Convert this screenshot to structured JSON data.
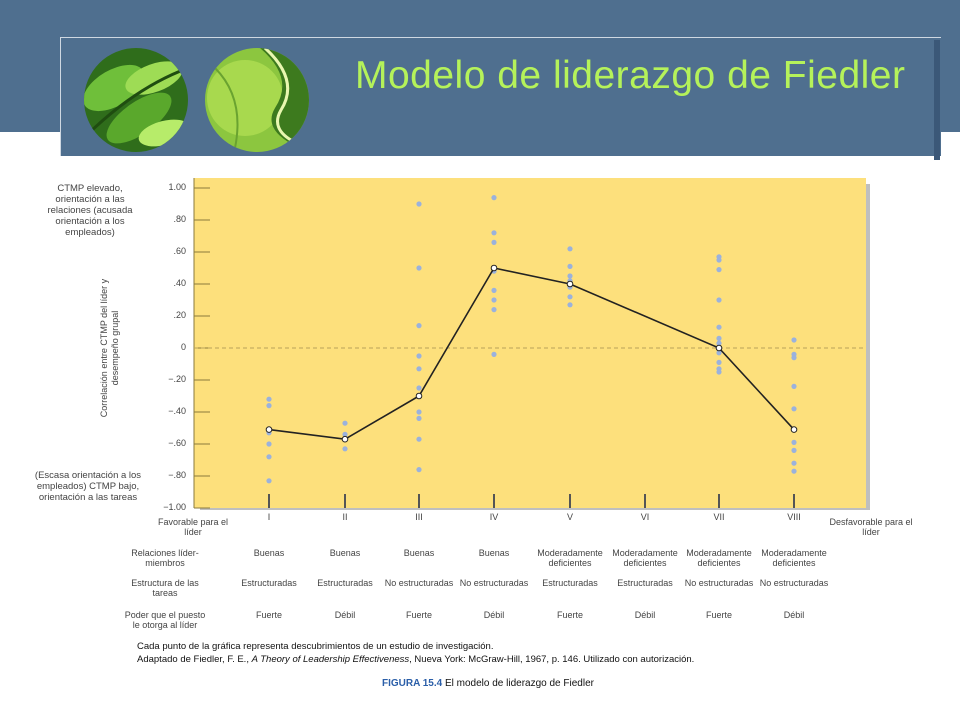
{
  "slide": {
    "title": "Modelo de liderazgo de Fiedler"
  },
  "colors": {
    "banner": "#4f6f8f",
    "title": "#b5f25a",
    "plot_background": "#fde07c",
    "points": "#9bb2dc",
    "line": "#222222"
  },
  "figure": {
    "y_top_note": "CTMP elevado, orientación a las relaciones (acusada orientación a los empleados)",
    "y_axis_label": "Correlación entre CTMP del líder y desempeño grupal",
    "y_bottom_note": "(Escasa orientación a los empleados) CTMP bajo, orientación a las tareas",
    "left_end": "Favorable para el líder",
    "right_end": "Desfavorable para el líder",
    "row_labels": {
      "relations": "Relaciones líder-miembros",
      "structure": "Estructura de las tareas",
      "power": "Poder que el puesto le otorga al líder"
    },
    "note_line1": "Cada punto de la gráfica representa descubrimientos de un estudio de investigación.",
    "note_line2_pre": "Adaptado de Fiedler, F. E., ",
    "note_line2_book": "A Theory of Leadership Effectiveness",
    "note_line2_post": ", Nueva York: McGraw-Hill, 1967, p. 146. Utilizado con autorización.",
    "caption_label": "FIGURA 15.4",
    "caption_text": " El modelo de liderazgo de Fiedler"
  },
  "chart_data": {
    "type": "scatter",
    "ylim": [
      -1.0,
      1.0
    ],
    "yticks": [
      "1.00",
      ".80",
      ".60",
      ".40",
      ".20",
      "0",
      "−.20",
      "−.40",
      "−.60",
      "−.80",
      "−1.00"
    ],
    "grid": false,
    "zero_line": "dashed",
    "categories": [
      "I",
      "II",
      "III",
      "IV",
      "V",
      "VI",
      "VII",
      "VIII"
    ],
    "relations": [
      "Buenas",
      "Buenas",
      "Buenas",
      "Buenas",
      "Moderadamente deficientes",
      "Moderadamente deficientes",
      "Moderadamente deficientes",
      "Moderadamente deficientes"
    ],
    "task_structure": [
      "Estructuradas",
      "Estructuradas",
      "No estructuradas",
      "No estructuradas",
      "Estructuradas",
      "Estructuradas",
      "No estructuradas",
      "No estructuradas"
    ],
    "position_power": [
      "Fuerte",
      "Débil",
      "Fuerte",
      "Débil",
      "Fuerte",
      "Débil",
      "Fuerte",
      "Débil"
    ],
    "median_line": [
      {
        "octant": "I",
        "y": -0.51
      },
      {
        "octant": "II",
        "y": -0.57
      },
      {
        "octant": "III",
        "y": -0.3
      },
      {
        "octant": "IV",
        "y": 0.5
      },
      {
        "octant": "V",
        "y": 0.4
      },
      {
        "octant": "VII",
        "y": 0.0
      },
      {
        "octant": "VIII",
        "y": -0.51
      }
    ],
    "studies": [
      {
        "octant": "I",
        "values": [
          -0.32,
          -0.36,
          -0.53,
          -0.6,
          -0.68,
          -0.83
        ]
      },
      {
        "octant": "II",
        "values": [
          -0.47,
          -0.54,
          -0.63
        ]
      },
      {
        "octant": "III",
        "values": [
          0.9,
          0.5,
          0.14,
          -0.05,
          -0.13,
          -0.25,
          -0.4,
          -0.44,
          -0.57,
          -0.76
        ]
      },
      {
        "octant": "IV",
        "values": [
          0.94,
          0.72,
          0.66,
          0.48,
          0.36,
          0.3,
          0.24,
          -0.04
        ]
      },
      {
        "octant": "V",
        "values": [
          0.62,
          0.51,
          0.45,
          0.42,
          0.38,
          0.32,
          0.27
        ]
      },
      {
        "octant": "VII",
        "values": [
          0.57,
          0.55,
          0.49,
          0.3,
          0.13,
          0.06,
          0.03,
          -0.03,
          -0.09,
          -0.13,
          -0.15
        ]
      },
      {
        "octant": "VIII",
        "values": [
          0.05,
          -0.04,
          -0.06,
          -0.24,
          -0.38,
          -0.59,
          -0.64,
          -0.72,
          -0.77
        ]
      }
    ]
  }
}
